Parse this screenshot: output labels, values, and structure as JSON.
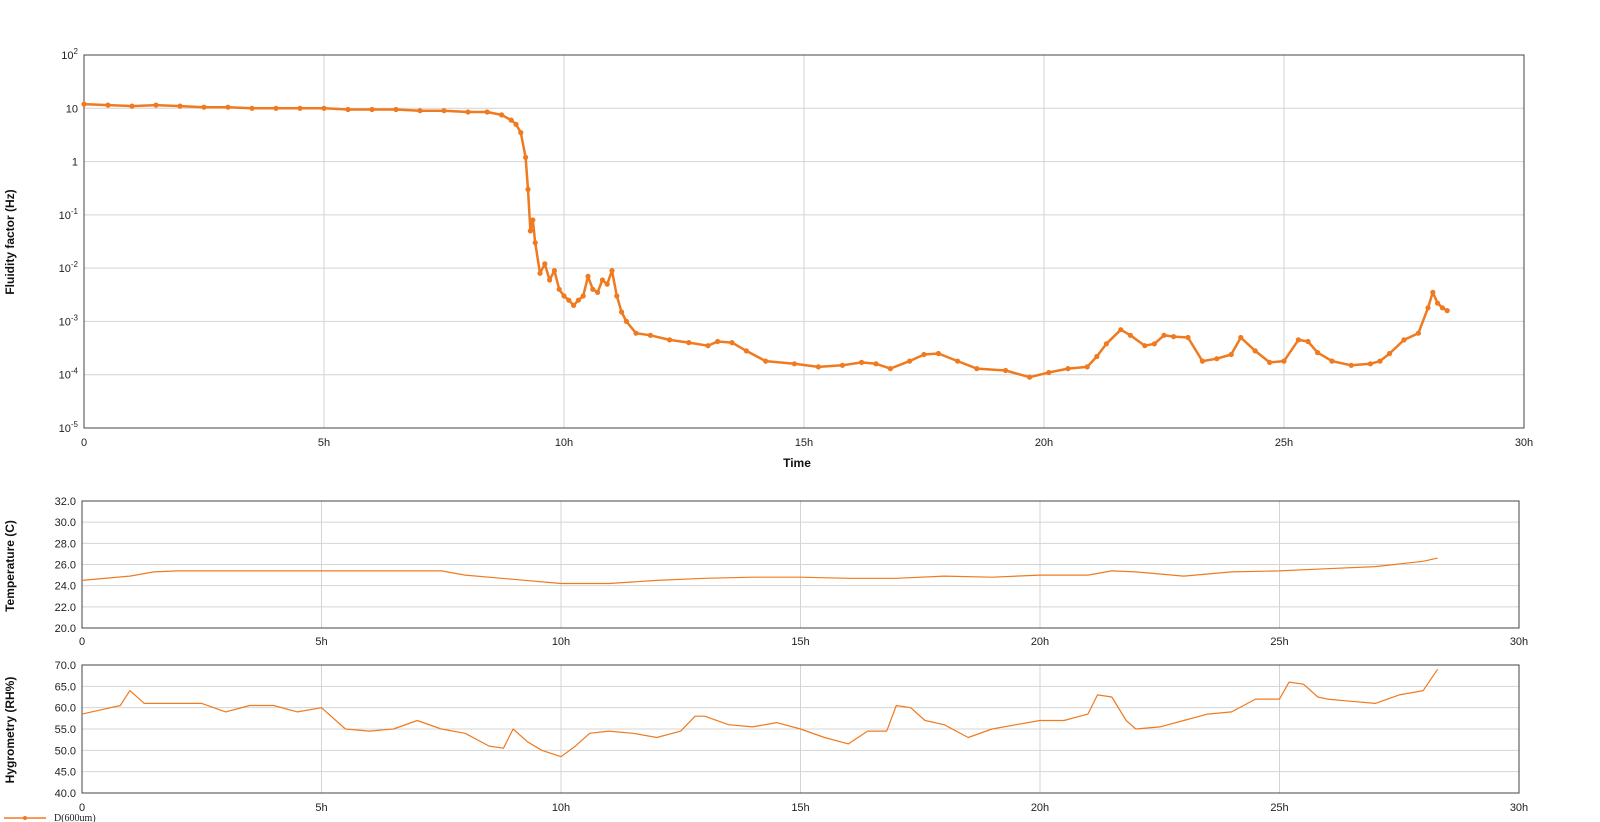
{
  "colors": {
    "series": "#f07a1f",
    "grid": "#d4d4d4",
    "frame": "#444444"
  },
  "legend": {
    "label": "D(600um)"
  },
  "chart_data": [
    {
      "type": "scatter",
      "name": "fluidity",
      "xlabel": "Time",
      "ylabel": "Fluidity factor (Hz)",
      "yscale": "log",
      "xlim": [
        0,
        30
      ],
      "ylim": [
        1e-05,
        100
      ],
      "x_ticks": [
        "0",
        "5h",
        "10h",
        "15h",
        "20h",
        "25h",
        "30h"
      ],
      "y_ticks": [
        {
          "base": "10",
          "exp": "2"
        },
        {
          "base": "10",
          "exp": ""
        },
        {
          "base": "1",
          "exp": ""
        },
        {
          "base": "10",
          "exp": "-1"
        },
        {
          "base": "10",
          "exp": "-2"
        },
        {
          "base": "10",
          "exp": "-3"
        },
        {
          "base": "10",
          "exp": "-4"
        },
        {
          "base": "10",
          "exp": "-5"
        }
      ],
      "series": [
        {
          "x": [
            0,
            0.5,
            1,
            1.5,
            2,
            2.5,
            3,
            3.5,
            4,
            4.5,
            5,
            5.5,
            6,
            6.5,
            7,
            7.5,
            8,
            8.4,
            8.7,
            8.9,
            9.0,
            9.1,
            9.2,
            9.25,
            9.3,
            9.35,
            9.4,
            9.5,
            9.6,
            9.7,
            9.8,
            9.9,
            10.0,
            10.1,
            10.2,
            10.3,
            10.4,
            10.5,
            10.6,
            10.7,
            10.8,
            10.9,
            11.0,
            11.1,
            11.2,
            11.3,
            11.5,
            11.8,
            12.2,
            12.6,
            13.0,
            13.2,
            13.5,
            13.8,
            14.2,
            14.8,
            15.3,
            15.8,
            16.2,
            16.5,
            16.8,
            17.2,
            17.5,
            17.8,
            18.2,
            18.6,
            19.2,
            19.7,
            20.1,
            20.5,
            20.9,
            21.1,
            21.3,
            21.6,
            21.8,
            22.1,
            22.3,
            22.5,
            22.7,
            23.0,
            23.3,
            23.6,
            23.9,
            24.1,
            24.4,
            24.7,
            25.0,
            25.3,
            25.5,
            25.7,
            26.0,
            26.4,
            26.8,
            27.0,
            27.2,
            27.5,
            27.8,
            28.0,
            28.1,
            28.2,
            28.3,
            28.4
          ],
          "y": [
            12,
            11.5,
            11,
            11.5,
            11,
            10.5,
            10.5,
            10,
            10,
            10,
            10,
            9.5,
            9.5,
            9.5,
            9.0,
            9.0,
            8.5,
            8.5,
            7.5,
            6,
            5,
            3.5,
            1.2,
            0.3,
            0.05,
            0.08,
            0.03,
            0.008,
            0.012,
            0.006,
            0.009,
            0.004,
            0.003,
            0.0025,
            0.002,
            0.0025,
            0.003,
            0.007,
            0.004,
            0.0035,
            0.006,
            0.005,
            0.009,
            0.003,
            0.0015,
            0.001,
            0.0006,
            0.00055,
            0.00045,
            0.0004,
            0.00035,
            0.00042,
            0.0004,
            0.00028,
            0.00018,
            0.00016,
            0.00014,
            0.00015,
            0.00017,
            0.00016,
            0.00013,
            0.00018,
            0.00024,
            0.00025,
            0.00018,
            0.00013,
            0.00012,
            9e-05,
            0.00011,
            0.00013,
            0.00014,
            0.00022,
            0.00038,
            0.0007,
            0.00055,
            0.00035,
            0.00038,
            0.00055,
            0.00052,
            0.0005,
            0.00018,
            0.0002,
            0.00024,
            0.0005,
            0.00028,
            0.00017,
            0.00018,
            0.00045,
            0.00042,
            0.00026,
            0.00018,
            0.00015,
            0.00016,
            0.00018,
            0.00025,
            0.00045,
            0.0006,
            0.0018,
            0.0035,
            0.0022,
            0.0018,
            0.0016
          ]
        }
      ]
    },
    {
      "type": "line",
      "name": "temperature",
      "ylabel": "Temperature (C)",
      "xlim": [
        0,
        30
      ],
      "ylim": [
        20,
        32
      ],
      "x_ticks": [
        "0",
        "5h",
        "10h",
        "15h",
        "20h",
        "25h",
        "30h"
      ],
      "y_ticks": [
        "32.0",
        "30.0",
        "28.0",
        "26.0",
        "24.0",
        "22.0",
        "20.0"
      ],
      "series": [
        {
          "x": [
            0,
            1,
            1.5,
            2,
            3,
            4,
            5,
            6,
            7,
            7.5,
            8,
            9,
            10,
            11,
            12,
            13,
            14,
            15,
            16,
            17,
            18,
            19,
            20,
            21,
            21.5,
            22,
            23,
            24,
            25,
            26,
            27,
            28,
            28.3
          ],
          "y": [
            24.5,
            24.9,
            25.3,
            25.4,
            25.4,
            25.4,
            25.4,
            25.4,
            25.4,
            25.4,
            25.0,
            24.6,
            24.2,
            24.2,
            24.5,
            24.7,
            24.8,
            24.8,
            24.7,
            24.7,
            24.9,
            24.8,
            25.0,
            25.0,
            25.4,
            25.3,
            24.9,
            25.3,
            25.4,
            25.6,
            25.8,
            26.3,
            26.6
          ]
        }
      ]
    },
    {
      "type": "line",
      "name": "hygrometry",
      "ylabel": "Hygrometry (RH%)",
      "xlim": [
        0,
        30
      ],
      "ylim": [
        40,
        70
      ],
      "x_ticks": [
        "0",
        "5h",
        "10h",
        "15h",
        "20h",
        "25h",
        "30h"
      ],
      "y_ticks": [
        "70.0",
        "65.0",
        "60.0",
        "55.0",
        "50.0",
        "45.0",
        "40.0"
      ],
      "series": [
        {
          "x": [
            0,
            0.4,
            0.8,
            1.0,
            1.3,
            1.6,
            2.0,
            2.5,
            3.0,
            3.5,
            4.0,
            4.5,
            5.0,
            5.5,
            6.0,
            6.5,
            7.0,
            7.5,
            8.0,
            8.5,
            8.8,
            9.0,
            9.3,
            9.6,
            10.0,
            10.3,
            10.6,
            11.0,
            11.5,
            12.0,
            12.5,
            12.8,
            13.0,
            13.5,
            14.0,
            14.5,
            15.0,
            15.5,
            16.0,
            16.4,
            16.8,
            17.0,
            17.3,
            17.6,
            18.0,
            18.5,
            19.0,
            19.5,
            20.0,
            20.5,
            21.0,
            21.2,
            21.5,
            21.8,
            22.0,
            22.5,
            23.0,
            23.5,
            24.0,
            24.5,
            25.0,
            25.2,
            25.5,
            25.8,
            26.0,
            26.5,
            27.0,
            27.5,
            28.0,
            28.3
          ],
          "y": [
            58.5,
            59.5,
            60.5,
            64.0,
            61.0,
            61.0,
            61.0,
            61.0,
            59.0,
            60.5,
            60.5,
            59.0,
            60.0,
            55.0,
            54.5,
            55.0,
            57.0,
            55.0,
            54.0,
            51.0,
            50.5,
            55.0,
            52.0,
            50.0,
            48.5,
            51.0,
            54.0,
            54.5,
            54.0,
            53.0,
            54.5,
            58.0,
            58.0,
            56.0,
            55.5,
            56.5,
            55.0,
            53.0,
            51.5,
            54.5,
            54.5,
            60.5,
            60.0,
            57.0,
            56.0,
            53.0,
            55.0,
            56.0,
            57.0,
            57.0,
            58.5,
            63.0,
            62.5,
            57.0,
            55.0,
            55.5,
            57.0,
            58.5,
            59.0,
            62.0,
            62.0,
            66.0,
            65.5,
            62.5,
            62.0,
            61.5,
            61.0,
            63.0,
            64.0,
            69.0
          ]
        }
      ]
    }
  ]
}
